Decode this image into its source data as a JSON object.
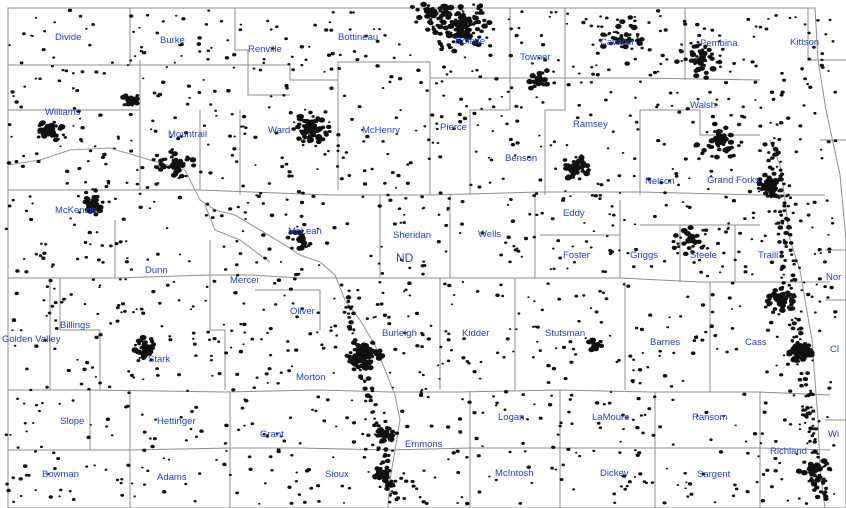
{
  "map": {
    "state_label": "ND",
    "colors": {
      "background": "#ffffff",
      "county_label": "#1f3fd8",
      "dots": "#111111",
      "borders": "#8c8c8c"
    },
    "counties": [
      {
        "id": "divide",
        "name": "Divide"
      },
      {
        "id": "burke",
        "name": "Burke"
      },
      {
        "id": "renville",
        "name": "Renville"
      },
      {
        "id": "bottineau",
        "name": "Bottineau"
      },
      {
        "id": "rolette",
        "name": "Rolette"
      },
      {
        "id": "towner",
        "name": "Towner"
      },
      {
        "id": "cavalier",
        "name": "Cavalier"
      },
      {
        "id": "pembina",
        "name": "Pembina"
      },
      {
        "id": "kittson",
        "name": "Kittson"
      },
      {
        "id": "williams",
        "name": "Williams"
      },
      {
        "id": "mountrail",
        "name": "Mountrail"
      },
      {
        "id": "ward",
        "name": "Ward"
      },
      {
        "id": "mchenry",
        "name": "McHenry"
      },
      {
        "id": "pierce",
        "name": "Pierce"
      },
      {
        "id": "ramsey",
        "name": "Ramsey"
      },
      {
        "id": "walsh",
        "name": "Walsh"
      },
      {
        "id": "benson",
        "name": "Benson"
      },
      {
        "id": "nelson",
        "name": "Nelson"
      },
      {
        "id": "grand-forks",
        "name": "Grand Forks"
      },
      {
        "id": "mckenzie",
        "name": "McKenzie"
      },
      {
        "id": "mclean",
        "name": "McLean"
      },
      {
        "id": "sheridan",
        "name": "Sheridan"
      },
      {
        "id": "wells",
        "name": "Wells"
      },
      {
        "id": "eddy",
        "name": "Eddy"
      },
      {
        "id": "foster",
        "name": "Foster"
      },
      {
        "id": "griggs",
        "name": "Griggs"
      },
      {
        "id": "steele",
        "name": "Steele"
      },
      {
        "id": "traill",
        "name": "Traill"
      },
      {
        "id": "dunn",
        "name": "Dunn"
      },
      {
        "id": "mercer",
        "name": "Mercer"
      },
      {
        "id": "oliver",
        "name": "Oliver"
      },
      {
        "id": "golden-valley",
        "name": "Golden Valley"
      },
      {
        "id": "billings",
        "name": "Billings"
      },
      {
        "id": "stark",
        "name": "Stark"
      },
      {
        "id": "morton",
        "name": "Morton"
      },
      {
        "id": "burleigh",
        "name": "Burleigh"
      },
      {
        "id": "kidder",
        "name": "Kidder"
      },
      {
        "id": "stutsman",
        "name": "Stutsman"
      },
      {
        "id": "barnes",
        "name": "Barnes"
      },
      {
        "id": "cass",
        "name": "Cass"
      },
      {
        "id": "slope",
        "name": "Slope"
      },
      {
        "id": "hettinger",
        "name": "Hettinger"
      },
      {
        "id": "grant",
        "name": "Grant"
      },
      {
        "id": "emmons",
        "name": "Emmons"
      },
      {
        "id": "logan",
        "name": "Logan"
      },
      {
        "id": "lamoure",
        "name": "LaMoure"
      },
      {
        "id": "ransom",
        "name": "Ransom"
      },
      {
        "id": "bowman",
        "name": "Bowman"
      },
      {
        "id": "adams",
        "name": "Adams"
      },
      {
        "id": "sioux",
        "name": "Sioux"
      },
      {
        "id": "mcintosh",
        "name": "McIntosh"
      },
      {
        "id": "dickey",
        "name": "Dickey"
      },
      {
        "id": "sargent",
        "name": "Sargent"
      },
      {
        "id": "richland",
        "name": "Richland"
      },
      {
        "id": "norman",
        "name": "Nor"
      },
      {
        "id": "clay",
        "name": "Cl"
      },
      {
        "id": "wilkin",
        "name": "Wi"
      }
    ]
  }
}
